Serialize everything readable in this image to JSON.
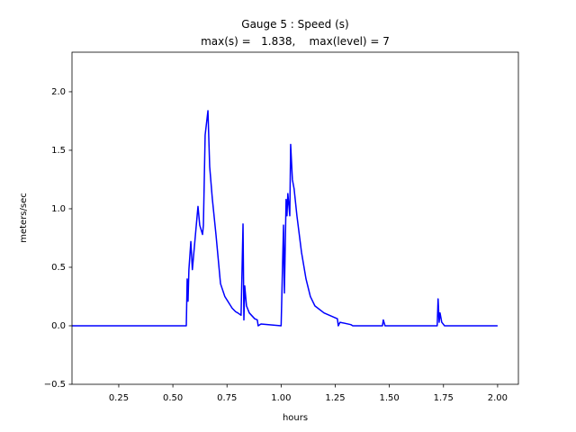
{
  "chart_data": {
    "type": "line",
    "title": "Gauge 5 : Speed (s)",
    "subtitle": "max(s) =   1.838,    max(level) = 7",
    "x_label": "hours",
    "y_label": "meters/sec",
    "color": "#0000ff",
    "xlim": [
      0.034,
      2.096
    ],
    "ylim": [
      -0.5,
      2.338
    ],
    "xticks": [
      {
        "value": 0.25,
        "label": "0.25"
      },
      {
        "value": 0.5,
        "label": "0.50"
      },
      {
        "value": 0.75,
        "label": "0.75"
      },
      {
        "value": 1.0,
        "label": "1.00"
      },
      {
        "value": 1.25,
        "label": "1.25"
      },
      {
        "value": 1.5,
        "label": "1.50"
      },
      {
        "value": 1.75,
        "label": "1.75"
      },
      {
        "value": 2.0,
        "label": "2.00"
      }
    ],
    "yticks": [
      {
        "value": -0.5,
        "label": "−0.5"
      },
      {
        "value": 0.0,
        "label": "0.0"
      },
      0.5,
      {
        "value": 1.0,
        "label": "1.0"
      },
      1.5,
      {
        "value": 2.0,
        "label": "2.0"
      }
    ],
    "x": [
      0.034,
      0.562,
      0.566,
      0.57,
      0.574,
      0.583,
      0.59,
      0.6,
      0.612,
      0.616,
      0.624,
      0.637,
      0.641,
      0.649,
      0.662,
      0.67,
      0.682,
      0.699,
      0.72,
      0.74,
      0.774,
      0.79,
      0.8,
      0.815,
      0.824,
      0.828,
      0.832,
      0.84,
      0.853,
      0.878,
      0.89,
      0.894,
      0.907,
      1.0,
      1.011,
      1.015,
      1.023,
      1.027,
      1.031,
      1.04,
      1.044,
      1.052,
      1.06,
      1.073,
      1.094,
      1.115,
      1.135,
      1.156,
      1.198,
      1.26,
      1.264,
      1.272,
      1.322,
      1.331,
      1.468,
      1.472,
      1.48,
      1.721,
      1.725,
      1.73,
      1.734,
      1.742,
      1.755,
      2.0
    ],
    "values": [
      0,
      0,
      0.4,
      0.21,
      0.48,
      0.72,
      0.48,
      0.69,
      0.94,
      1.02,
      0.86,
      0.78,
      0.86,
      1.63,
      1.838,
      1.36,
      1.09,
      0.78,
      0.36,
      0.25,
      0.15,
      0.12,
      0.11,
      0.09,
      0.87,
      0.05,
      0.34,
      0.17,
      0.11,
      0.06,
      0.05,
      0,
      0.015,
      0,
      0.86,
      0.28,
      1.08,
      0.94,
      1.13,
      0.94,
      1.55,
      1.25,
      1.17,
      0.94,
      0.63,
      0.4,
      0.25,
      0.17,
      0.11,
      0.06,
      0,
      0.03,
      0.01,
      0,
      0,
      0.05,
      0,
      0,
      0.23,
      0.03,
      0.11,
      0.03,
      0,
      0
    ]
  }
}
